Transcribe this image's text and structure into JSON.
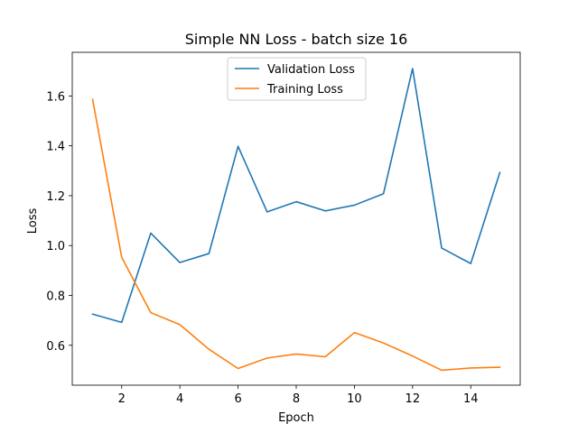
{
  "chart_data": {
    "type": "line",
    "title": "Simple NN Loss - batch size 16",
    "xlabel": "Epoch",
    "ylabel": "Loss",
    "xlim": [
      0.3,
      15.7
    ],
    "ylim": [
      0.44,
      1.775
    ],
    "xticks": [
      2,
      4,
      6,
      8,
      10,
      12,
      14
    ],
    "yticks": [
      0.6,
      0.8,
      1.0,
      1.2,
      1.4,
      1.6
    ],
    "ytick_labels": [
      "0.6",
      "0.8",
      "1.0",
      "1.2",
      "1.4",
      "1.6"
    ],
    "grid": false,
    "legend_position": "top-center",
    "x": [
      1,
      2,
      3,
      4,
      5,
      6,
      7,
      8,
      9,
      10,
      11,
      12,
      13,
      14,
      15
    ],
    "series": [
      {
        "name": "Validation Loss",
        "color": "#1f77b4",
        "values": [
          0.725,
          0.692,
          1.05,
          0.932,
          0.968,
          1.398,
          1.135,
          1.176,
          1.139,
          1.162,
          1.208,
          1.71,
          0.99,
          0.928,
          1.293
        ]
      },
      {
        "name": "Training Loss",
        "color": "#ff7f0e",
        "values": [
          1.586,
          0.953,
          0.731,
          0.683,
          0.584,
          0.507,
          0.549,
          0.565,
          0.554,
          0.651,
          0.609,
          0.557,
          0.5,
          0.509,
          0.512
        ]
      }
    ]
  }
}
